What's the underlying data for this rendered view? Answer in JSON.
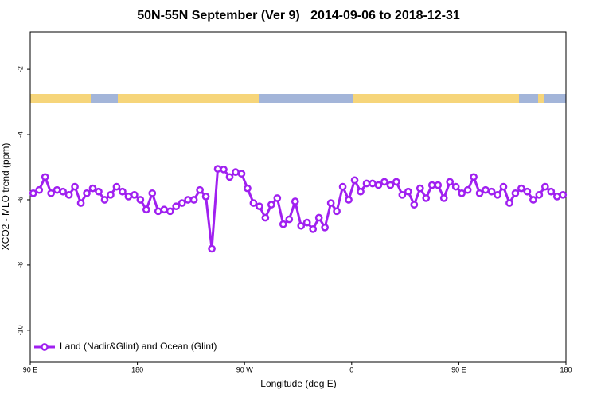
{
  "chart_data": {
    "type": "line",
    "title": "50N-55N September (Ver 9)   2014-09-06 to 2018-12-31",
    "xlabel": "Longitude (deg E)",
    "ylabel": "XCO2 - MLO trend (ppm)",
    "xlim": [
      90,
      540
    ],
    "ylim": [
      -10.98,
      -0.85
    ],
    "xticks": [
      {
        "value": 90,
        "label": "90 E"
      },
      180,
      {
        "value": 270,
        "label": "90 W"
      },
      {
        "value": 360,
        "label": "0"
      },
      {
        "value": 450,
        "label": "90 E"
      },
      {
        "value": 540,
        "label": "180"
      }
    ],
    "yticks": [
      -2,
      -4,
      -6,
      -8,
      -10
    ],
    "legend": "bottom-left",
    "x": [
      92.5,
      97.5,
      102.5,
      107.5,
      112.5,
      117.5,
      122.5,
      127.5,
      132.5,
      137.5,
      142.5,
      147.5,
      152.5,
      157.5,
      162.5,
      167.5,
      172.5,
      177.5,
      182.5,
      187.5,
      192.5,
      197.5,
      202.5,
      207.5,
      212.5,
      217.5,
      222.5,
      227.5,
      232.5,
      237.5,
      242.5,
      247.5,
      252.5,
      257.5,
      262.5,
      267.5,
      272.5,
      277.5,
      282.5,
      287.5,
      292.5,
      297.5,
      302.5,
      307.5,
      312.5,
      317.5,
      322.5,
      327.5,
      332.5,
      337.5,
      342.5,
      347.5,
      352.5,
      357.5,
      362.5,
      367.5,
      372.5,
      377.5,
      382.5,
      387.5,
      392.5,
      397.5,
      402.5,
      407.5,
      412.5,
      417.5,
      422.5,
      427.5,
      432.5,
      437.5,
      442.5,
      447.5,
      452.5,
      457.5,
      462.5,
      467.5,
      472.5,
      477.5,
      482.5,
      487.5,
      492.5,
      497.5,
      502.5,
      507.5,
      512.5,
      517.5,
      522.5,
      527.5,
      532.5,
      537.5
    ],
    "series": [
      {
        "name": "Land (Nadir&Glint) and Ocean (Glint)",
        "color": "#a020f0",
        "values": [
          -5.8,
          -5.7,
          -5.3,
          -5.8,
          -5.7,
          -5.75,
          -5.85,
          -5.6,
          -6.1,
          -5.8,
          -5.65,
          -5.75,
          -6.0,
          -5.85,
          -5.6,
          -5.75,
          -5.9,
          -5.85,
          -6.0,
          -6.3,
          -5.8,
          -6.35,
          -6.3,
          -6.35,
          -6.2,
          -6.1,
          -6.0,
          -6.0,
          -5.7,
          -5.9,
          -7.5,
          -5.05,
          -5.07,
          -5.3,
          -5.15,
          -5.2,
          -5.65,
          -6.1,
          -6.2,
          -6.55,
          -6.15,
          -5.95,
          -6.75,
          -6.6,
          -6.05,
          -6.8,
          -6.7,
          -6.9,
          -6.55,
          -6.85,
          -6.1,
          -6.35,
          -5.6,
          -6.0,
          -5.4,
          -5.75,
          -5.5,
          -5.5,
          -5.55,
          -5.45,
          -5.55,
          -5.45,
          -5.85,
          -5.75,
          -6.15,
          -5.65,
          -5.95,
          -5.55,
          -5.55,
          -5.95,
          -5.45,
          -5.6,
          -5.8,
          -5.7,
          -5.3,
          -5.8,
          -5.7,
          -5.75,
          -5.85,
          -5.6,
          -6.1,
          -5.8,
          -5.65,
          -5.75,
          -6.0,
          -5.85,
          -5.6,
          -5.75,
          -5.9,
          -5.85
        ]
      }
    ]
  }
}
